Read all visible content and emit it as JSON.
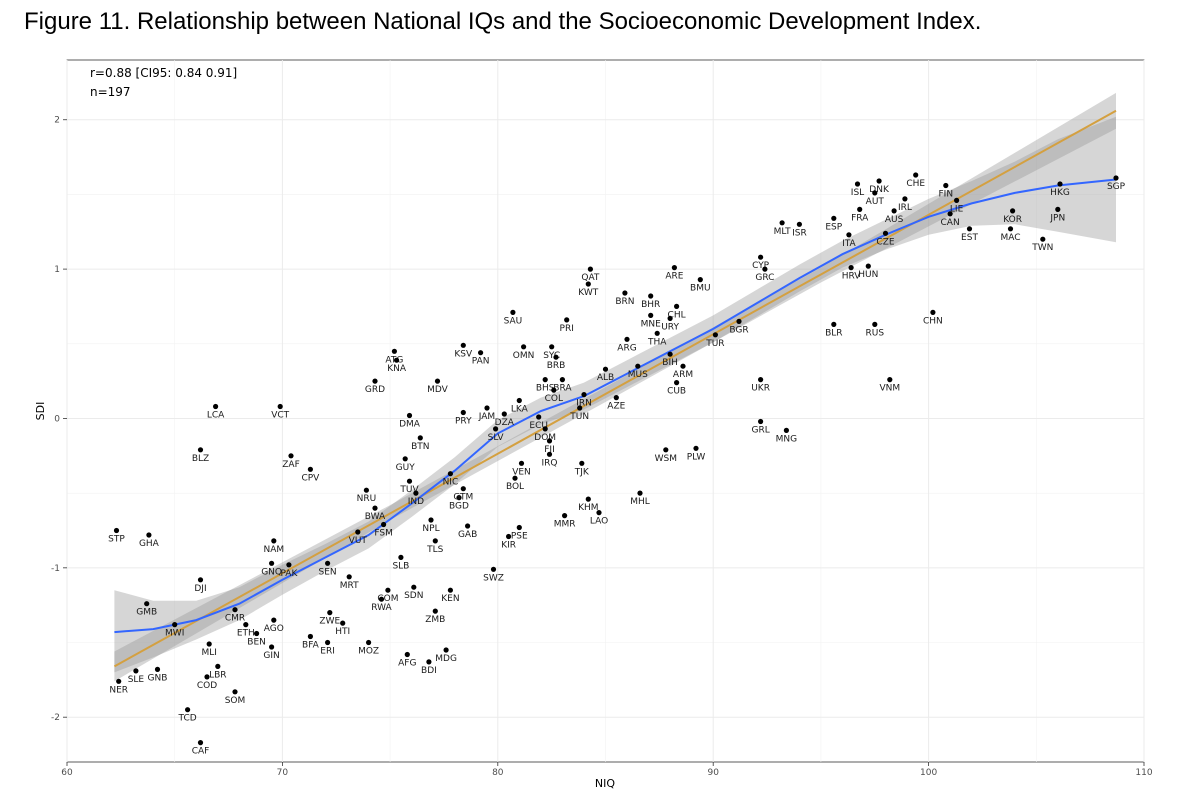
{
  "title": "Figure 11. Relationship between National IQs and the Socioeconomic Development Index.",
  "chart_data": {
    "type": "scatter",
    "title": "Figure 11. Relationship between National IQs and the Socioeconomic Development Index.",
    "xlabel": "NIQ",
    "ylabel": "SDI",
    "xlim": [
      60,
      110
    ],
    "ylim": [
      -2.3,
      2.4
    ],
    "xticks": [
      60,
      70,
      80,
      90,
      100,
      110
    ],
    "yticks": [
      -2,
      -1,
      0,
      1,
      2
    ],
    "grid": true,
    "annotations": [
      "r=0.88 [CI95: 0.84 0.91]",
      "n=197"
    ],
    "colors": {
      "points": "#000000",
      "labels": "#1a1a1a",
      "loess": "#3366ff",
      "linear": "#d4a040",
      "band": "#999999",
      "grid": "#ebebeb"
    },
    "points": [
      {
        "label": "STP",
        "x": 62.3,
        "y": -0.75
      },
      {
        "label": "GHA",
        "x": 63.8,
        "y": -0.78
      },
      {
        "label": "NER",
        "x": 62.4,
        "y": -1.76
      },
      {
        "label": "SLE",
        "x": 63.2,
        "y": -1.69
      },
      {
        "label": "GNB",
        "x": 64.2,
        "y": -1.68
      },
      {
        "label": "GMB",
        "x": 63.7,
        "y": -1.24
      },
      {
        "label": "MWI",
        "x": 65.0,
        "y": -1.38
      },
      {
        "label": "DJI",
        "x": 66.2,
        "y": -1.08
      },
      {
        "label": "CMR",
        "x": 67.8,
        "y": -1.28
      },
      {
        "label": "MLI",
        "x": 66.6,
        "y": -1.51
      },
      {
        "label": "LBR",
        "x": 67.0,
        "y": -1.66
      },
      {
        "label": "COD",
        "x": 66.5,
        "y": -1.73
      },
      {
        "label": "SOM",
        "x": 67.8,
        "y": -1.83
      },
      {
        "label": "TCD",
        "x": 65.6,
        "y": -1.95
      },
      {
        "label": "CAF",
        "x": 66.2,
        "y": -2.17
      },
      {
        "label": "LCA",
        "x": 66.9,
        "y": 0.08
      },
      {
        "label": "BLZ",
        "x": 66.2,
        "y": -0.21
      },
      {
        "label": "VCT",
        "x": 69.9,
        "y": 0.08
      },
      {
        "label": "ZAF",
        "x": 70.4,
        "y": -0.25
      },
      {
        "label": "CPV",
        "x": 71.3,
        "y": -0.34
      },
      {
        "label": "NAM",
        "x": 69.6,
        "y": -0.82
      },
      {
        "label": "GNQ",
        "x": 69.5,
        "y": -0.97
      },
      {
        "label": "PAK",
        "x": 70.3,
        "y": -0.98
      },
      {
        "label": "SEN",
        "x": 72.1,
        "y": -0.97
      },
      {
        "label": "ETH",
        "x": 68.3,
        "y": -1.38
      },
      {
        "label": "AGO",
        "x": 69.6,
        "y": -1.35
      },
      {
        "label": "BEN",
        "x": 68.8,
        "y": -1.44
      },
      {
        "label": "GIN",
        "x": 69.5,
        "y": -1.53
      },
      {
        "label": "BFA",
        "x": 71.3,
        "y": -1.46
      },
      {
        "label": "ZWE",
        "x": 72.2,
        "y": -1.3
      },
      {
        "label": "HTI",
        "x": 72.8,
        "y": -1.37
      },
      {
        "label": "ERI",
        "x": 72.1,
        "y": -1.5
      },
      {
        "label": "MOZ",
        "x": 74.0,
        "y": -1.5
      },
      {
        "label": "MRT",
        "x": 73.1,
        "y": -1.06
      },
      {
        "label": "SLB",
        "x": 75.5,
        "y": -0.93
      },
      {
        "label": "COM",
        "x": 74.9,
        "y": -1.15
      },
      {
        "label": "RWA",
        "x": 74.6,
        "y": -1.21
      },
      {
        "label": "SDN",
        "x": 76.1,
        "y": -1.13
      },
      {
        "label": "KEN",
        "x": 77.8,
        "y": -1.15
      },
      {
        "label": "ZMB",
        "x": 77.1,
        "y": -1.29
      },
      {
        "label": "AFG",
        "x": 75.8,
        "y": -1.58
      },
      {
        "label": "BDI",
        "x": 76.8,
        "y": -1.63
      },
      {
        "label": "MDG",
        "x": 77.6,
        "y": -1.55
      },
      {
        "label": "NRU",
        "x": 73.9,
        "y": -0.48
      },
      {
        "label": "BWA",
        "x": 74.3,
        "y": -0.6
      },
      {
        "label": "VUT",
        "x": 73.5,
        "y": -0.76
      },
      {
        "label": "FSM",
        "x": 74.7,
        "y": -0.71
      },
      {
        "label": "TUV",
        "x": 75.9,
        "y": -0.42
      },
      {
        "label": "IND",
        "x": 76.2,
        "y": -0.5
      },
      {
        "label": "NPL",
        "x": 76.9,
        "y": -0.68
      },
      {
        "label": "TLS",
        "x": 77.1,
        "y": -0.82
      },
      {
        "label": "BGD",
        "x": 78.2,
        "y": -0.53
      },
      {
        "label": "GTM",
        "x": 78.4,
        "y": -0.47
      },
      {
        "label": "GAB",
        "x": 78.6,
        "y": -0.72
      },
      {
        "label": "SWZ",
        "x": 79.8,
        "y": -1.01
      },
      {
        "label": "KIR",
        "x": 80.5,
        "y": -0.79
      },
      {
        "label": "PSE",
        "x": 81.0,
        "y": -0.73
      },
      {
        "label": "ATG",
        "x": 75.2,
        "y": 0.45
      },
      {
        "label": "KNA",
        "x": 75.3,
        "y": 0.39
      },
      {
        "label": "GRD",
        "x": 74.3,
        "y": 0.25
      },
      {
        "label": "MDV",
        "x": 77.2,
        "y": 0.25
      },
      {
        "label": "DMA",
        "x": 75.9,
        "y": 0.02
      },
      {
        "label": "BTN",
        "x": 76.4,
        "y": -0.13
      },
      {
        "label": "GUY",
        "x": 75.7,
        "y": -0.27
      },
      {
        "label": "NIC",
        "x": 77.8,
        "y": -0.37
      },
      {
        "label": "KSV",
        "x": 78.4,
        "y": 0.49
      },
      {
        "label": "PAN",
        "x": 79.2,
        "y": 0.44
      },
      {
        "label": "PRY",
        "x": 78.4,
        "y": 0.04
      },
      {
        "label": "JAM",
        "x": 79.5,
        "y": 0.07
      },
      {
        "label": "DZA",
        "x": 80.3,
        "y": 0.03
      },
      {
        "label": "SLV",
        "x": 79.9,
        "y": -0.07
      },
      {
        "label": "LKA",
        "x": 81.0,
        "y": 0.12
      },
      {
        "label": "ECU",
        "x": 81.9,
        "y": 0.01
      },
      {
        "label": "DOM",
        "x": 82.2,
        "y": -0.07
      },
      {
        "label": "FJI",
        "x": 82.4,
        "y": -0.15
      },
      {
        "label": "VEN",
        "x": 81.1,
        "y": -0.3
      },
      {
        "label": "BOL",
        "x": 80.8,
        "y": -0.4
      },
      {
        "label": "IRQ",
        "x": 82.4,
        "y": -0.24
      },
      {
        "label": "TJK",
        "x": 83.9,
        "y": -0.3
      },
      {
        "label": "SAU",
        "x": 80.7,
        "y": 0.71
      },
      {
        "label": "PRI",
        "x": 83.2,
        "y": 0.66
      },
      {
        "label": "OMN",
        "x": 81.2,
        "y": 0.48
      },
      {
        "label": "SYC",
        "x": 82.5,
        "y": 0.48
      },
      {
        "label": "BRB",
        "x": 82.7,
        "y": 0.41
      },
      {
        "label": "BHS",
        "x": 82.2,
        "y": 0.26
      },
      {
        "label": "BRA",
        "x": 83.0,
        "y": 0.26
      },
      {
        "label": "COL",
        "x": 82.6,
        "y": 0.19
      },
      {
        "label": "IRN",
        "x": 84.0,
        "y": 0.16
      },
      {
        "label": "TUN",
        "x": 83.8,
        "y": 0.07
      },
      {
        "label": "AZE",
        "x": 85.5,
        "y": 0.14
      },
      {
        "label": "QAT",
        "x": 84.3,
        "y": 1.0
      },
      {
        "label": "KWT",
        "x": 84.2,
        "y": 0.9
      },
      {
        "label": "BRN",
        "x": 85.9,
        "y": 0.84
      },
      {
        "label": "BHR",
        "x": 87.1,
        "y": 0.82
      },
      {
        "label": "ARE",
        "x": 88.2,
        "y": 1.01
      },
      {
        "label": "BMU",
        "x": 89.4,
        "y": 0.93
      },
      {
        "label": "CHL",
        "x": 88.3,
        "y": 0.75
      },
      {
        "label": "MNE",
        "x": 87.1,
        "y": 0.69
      },
      {
        "label": "URY",
        "x": 88.0,
        "y": 0.67
      },
      {
        "label": "ARG",
        "x": 86.0,
        "y": 0.53
      },
      {
        "label": "THA",
        "x": 87.4,
        "y": 0.57
      },
      {
        "label": "BIH",
        "x": 88.0,
        "y": 0.43
      },
      {
        "label": "MUS",
        "x": 86.5,
        "y": 0.35
      },
      {
        "label": "ALB",
        "x": 85.0,
        "y": 0.33
      },
      {
        "label": "ARM",
        "x": 88.6,
        "y": 0.35
      },
      {
        "label": "CUB",
        "x": 88.3,
        "y": 0.24
      },
      {
        "label": "BGR",
        "x": 91.2,
        "y": 0.65
      },
      {
        "label": "TUR",
        "x": 90.1,
        "y": 0.56
      },
      {
        "label": "WSM",
        "x": 87.8,
        "y": -0.21
      },
      {
        "label": "PLW",
        "x": 89.2,
        "y": -0.2
      },
      {
        "label": "KHM",
        "x": 84.2,
        "y": -0.54
      },
      {
        "label": "MHL",
        "x": 86.6,
        "y": -0.5
      },
      {
        "label": "MMR",
        "x": 83.1,
        "y": -0.65
      },
      {
        "label": "LAO",
        "x": 84.7,
        "y": -0.63
      },
      {
        "label": "UKR",
        "x": 92.2,
        "y": 0.26
      },
      {
        "label": "GRL",
        "x": 92.2,
        "y": -0.02
      },
      {
        "label": "MNG",
        "x": 93.4,
        "y": -0.08
      },
      {
        "label": "CYP",
        "x": 92.2,
        "y": 1.08
      },
      {
        "label": "GRC",
        "x": 92.4,
        "y": 1.0
      },
      {
        "label": "MLT",
        "x": 93.2,
        "y": 1.31
      },
      {
        "label": "ISR",
        "x": 94.0,
        "y": 1.3
      },
      {
        "label": "ESP",
        "x": 95.6,
        "y": 1.34
      },
      {
        "label": "ITA",
        "x": 96.3,
        "y": 1.23
      },
      {
        "label": "BLR",
        "x": 95.6,
        "y": 0.63
      },
      {
        "label": "RUS",
        "x": 97.5,
        "y": 0.63
      },
      {
        "label": "HRV",
        "x": 96.4,
        "y": 1.01
      },
      {
        "label": "HUN",
        "x": 97.2,
        "y": 1.02
      },
      {
        "label": "CHN",
        "x": 100.2,
        "y": 0.71
      },
      {
        "label": "VNM",
        "x": 98.2,
        "y": 0.26
      },
      {
        "label": "ISL",
        "x": 96.7,
        "y": 1.57
      },
      {
        "label": "DNK",
        "x": 97.7,
        "y": 1.59
      },
      {
        "label": "CHE",
        "x": 99.4,
        "y": 1.63
      },
      {
        "label": "AUT",
        "x": 97.5,
        "y": 1.51
      },
      {
        "label": "IRL",
        "x": 98.9,
        "y": 1.47
      },
      {
        "label": "FRA",
        "x": 96.8,
        "y": 1.4
      },
      {
        "label": "AUS",
        "x": 98.4,
        "y": 1.39
      },
      {
        "label": "CZE",
        "x": 98.0,
        "y": 1.24
      },
      {
        "label": "FIN",
        "x": 100.8,
        "y": 1.56
      },
      {
        "label": "LIE",
        "x": 101.3,
        "y": 1.46
      },
      {
        "label": "CAN",
        "x": 101.0,
        "y": 1.37
      },
      {
        "label": "EST",
        "x": 101.9,
        "y": 1.27
      },
      {
        "label": "KOR",
        "x": 103.9,
        "y": 1.39
      },
      {
        "label": "MAC",
        "x": 103.8,
        "y": 1.27
      },
      {
        "label": "TWN",
        "x": 105.3,
        "y": 1.2
      },
      {
        "label": "HKG",
        "x": 106.1,
        "y": 1.57
      },
      {
        "label": "JPN",
        "x": 106.0,
        "y": 1.4
      },
      {
        "label": "SGP",
        "x": 108.7,
        "y": 1.61
      }
    ],
    "loess_fit": [
      {
        "x": 62.2,
        "y": -1.43
      },
      {
        "x": 64,
        "y": -1.41
      },
      {
        "x": 66,
        "y": -1.35
      },
      {
        "x": 68,
        "y": -1.24
      },
      {
        "x": 70,
        "y": -1.08
      },
      {
        "x": 72,
        "y": -0.93
      },
      {
        "x": 74,
        "y": -0.78
      },
      {
        "x": 76,
        "y": -0.57
      },
      {
        "x": 78,
        "y": -0.35
      },
      {
        "x": 80,
        "y": -0.1
      },
      {
        "x": 82,
        "y": 0.05
      },
      {
        "x": 84,
        "y": 0.15
      },
      {
        "x": 86,
        "y": 0.3
      },
      {
        "x": 88,
        "y": 0.45
      },
      {
        "x": 90,
        "y": 0.6
      },
      {
        "x": 92,
        "y": 0.77
      },
      {
        "x": 94,
        "y": 0.94
      },
      {
        "x": 96,
        "y": 1.1
      },
      {
        "x": 98,
        "y": 1.23
      },
      {
        "x": 100,
        "y": 1.35
      },
      {
        "x": 102,
        "y": 1.44
      },
      {
        "x": 104,
        "y": 1.51
      },
      {
        "x": 106,
        "y": 1.56
      },
      {
        "x": 108.7,
        "y": 1.6
      }
    ],
    "loess_band": [
      {
        "x": 62.2,
        "lo": -1.7,
        "hi": -1.15
      },
      {
        "x": 64,
        "lo": -1.6,
        "hi": -1.22
      },
      {
        "x": 66,
        "lo": -1.48,
        "hi": -1.22
      },
      {
        "x": 68,
        "lo": -1.35,
        "hi": -1.13
      },
      {
        "x": 70,
        "lo": -1.18,
        "hi": -0.98
      },
      {
        "x": 72,
        "lo": -1.02,
        "hi": -0.84
      },
      {
        "x": 74,
        "lo": -0.87,
        "hi": -0.69
      },
      {
        "x": 76,
        "lo": -0.66,
        "hi": -0.48
      },
      {
        "x": 78,
        "lo": -0.44,
        "hi": -0.26
      },
      {
        "x": 80,
        "lo": -0.19,
        "hi": -0.01
      },
      {
        "x": 82,
        "lo": -0.04,
        "hi": 0.14
      },
      {
        "x": 84,
        "lo": 0.06,
        "hi": 0.24
      },
      {
        "x": 86,
        "lo": 0.21,
        "hi": 0.39
      },
      {
        "x": 88,
        "lo": 0.36,
        "hi": 0.54
      },
      {
        "x": 90,
        "lo": 0.51,
        "hi": 0.69
      },
      {
        "x": 92,
        "lo": 0.68,
        "hi": 0.86
      },
      {
        "x": 94,
        "lo": 0.85,
        "hi": 1.03
      },
      {
        "x": 96,
        "lo": 1.01,
        "hi": 1.19
      },
      {
        "x": 98,
        "lo": 1.13,
        "hi": 1.33
      },
      {
        "x": 100,
        "lo": 1.23,
        "hi": 1.47
      },
      {
        "x": 102,
        "lo": 1.29,
        "hi": 1.59
      },
      {
        "x": 104,
        "lo": 1.3,
        "hi": 1.72
      },
      {
        "x": 106,
        "lo": 1.25,
        "hi": 1.87
      },
      {
        "x": 108.7,
        "lo": 1.18,
        "hi": 2.02
      }
    ],
    "linear_fit": [
      {
        "x": 62.2,
        "y": -1.66
      },
      {
        "x": 108.7,
        "y": 2.06
      }
    ],
    "linear_band": [
      {
        "x": 62.2,
        "lo": -1.76,
        "hi": -1.56
      },
      {
        "x": 75,
        "lo": -0.68,
        "hi": -0.58
      },
      {
        "x": 85,
        "lo": 0.11,
        "hi": 0.21
      },
      {
        "x": 95,
        "lo": 0.91,
        "hi": 1.01
      },
      {
        "x": 108.7,
        "lo": 1.94,
        "hi": 2.18
      }
    ]
  }
}
